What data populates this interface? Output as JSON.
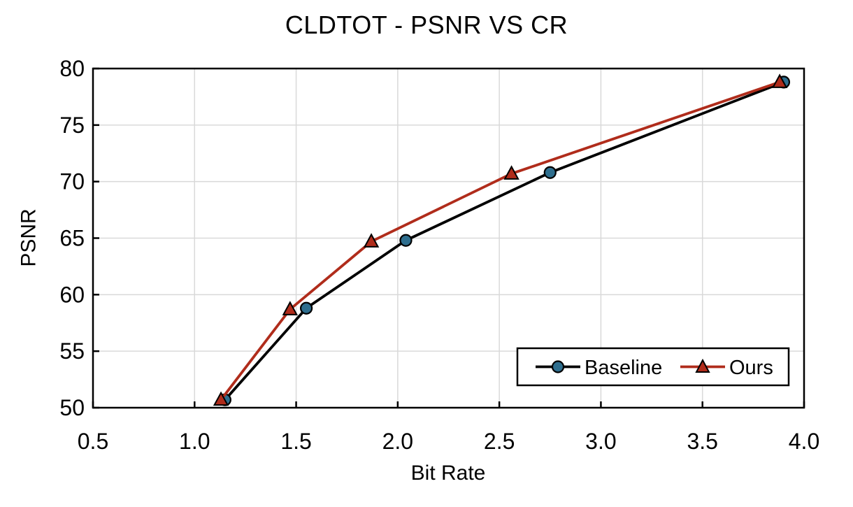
{
  "page": {
    "background": "#FFFFFF"
  },
  "chart_data": {
    "type": "line",
    "title": "CLDTOT - PSNR VS CR",
    "xlabel": "Bit Rate",
    "ylabel": "PSNR",
    "xlim": [
      0.5,
      4.0
    ],
    "ylim": [
      50,
      80
    ],
    "xticks": [
      0.5,
      1.0,
      1.5,
      2.0,
      2.5,
      3.0,
      3.5,
      4.0
    ],
    "xtick_labels": [
      "0.5",
      "1.0",
      "1.5",
      "2.0",
      "2.5",
      "3.0",
      "3.5",
      "4.0"
    ],
    "yticks": [
      50,
      55,
      60,
      65,
      70,
      75,
      80
    ],
    "ytick_labels": [
      "50",
      "55",
      "60",
      "65",
      "70",
      "75",
      "80"
    ],
    "grid": true,
    "tick_direction": "in",
    "legend_position": "inside lower right",
    "series": [
      {
        "name": "Baseline",
        "marker": "circle",
        "line_color": "#000000",
        "marker_fill": "#2E6E8E",
        "marker_edge": "#000000",
        "x": [
          1.15,
          1.55,
          2.04,
          2.75,
          3.9
        ],
        "y": [
          50.7,
          58.8,
          64.8,
          70.8,
          78.8
        ]
      },
      {
        "name": "Ours",
        "marker": "triangle",
        "line_color": "#B02C1B",
        "marker_fill": "#B02C1B",
        "marker_edge": "#000000",
        "x": [
          1.13,
          1.47,
          1.87,
          2.56,
          3.88
        ],
        "y": [
          50.7,
          58.7,
          64.7,
          70.7,
          78.8
        ]
      }
    ],
    "colors": {
      "grid": "#D9D9D9",
      "axis": "#000000",
      "text": "#000000",
      "plot_bg": "#FFFFFF"
    }
  }
}
